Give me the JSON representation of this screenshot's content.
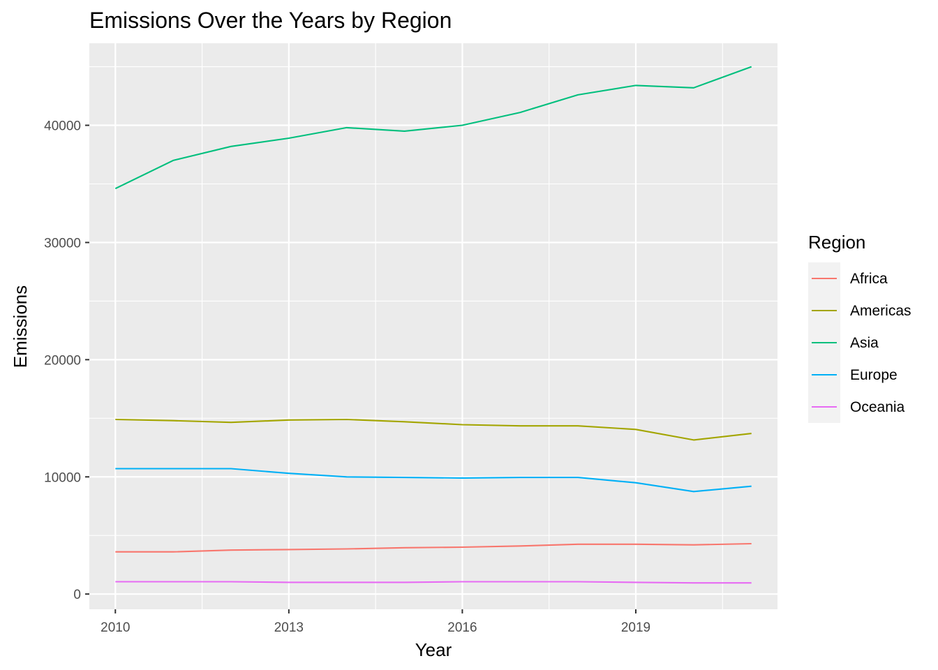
{
  "chart_data": {
    "type": "line",
    "title": "Emissions Over the Years by Region",
    "xlabel": "Year",
    "ylabel": "Emissions",
    "xlim": [
      2009.55,
      2021.45
    ],
    "ylim": [
      -1300,
      47000
    ],
    "x_ticks": [
      2010,
      2013,
      2016,
      2019
    ],
    "x_tick_labels": [
      "2010",
      "2013",
      "2016",
      "2019"
    ],
    "y_ticks": [
      0,
      10000,
      20000,
      30000,
      40000
    ],
    "y_tick_labels": [
      "0",
      "10000",
      "20000",
      "30000",
      "40000"
    ],
    "grid": true,
    "legend": {
      "title": "Region",
      "placement": "right"
    },
    "x": [
      2010,
      2011,
      2012,
      2013,
      2014,
      2015,
      2016,
      2017,
      2018,
      2019,
      2020,
      2021
    ],
    "series": [
      {
        "name": "Africa",
        "color": "#F8766D",
        "values": [
          3600,
          3600,
          3750,
          3800,
          3850,
          3950,
          4000,
          4100,
          4250,
          4250,
          4200,
          4300
        ]
      },
      {
        "name": "Americas",
        "color": "#A3A500",
        "values": [
          14900,
          14800,
          14650,
          14850,
          14900,
          14700,
          14450,
          14350,
          14350,
          14050,
          13150,
          13700
        ]
      },
      {
        "name": "Asia",
        "color": "#00BF7D",
        "values": [
          34600,
          37000,
          38200,
          38900,
          39800,
          39500,
          40000,
          41100,
          42600,
          43400,
          43200,
          45000
        ]
      },
      {
        "name": "Europe",
        "color": "#00B0F6",
        "values": [
          10700,
          10700,
          10700,
          10300,
          10000,
          9950,
          9900,
          9950,
          9950,
          9500,
          8750,
          9200
        ]
      },
      {
        "name": "Oceania",
        "color": "#E76BF3",
        "values": [
          1050,
          1050,
          1050,
          1000,
          1000,
          1000,
          1050,
          1050,
          1050,
          1000,
          950,
          950
        ]
      }
    ]
  }
}
